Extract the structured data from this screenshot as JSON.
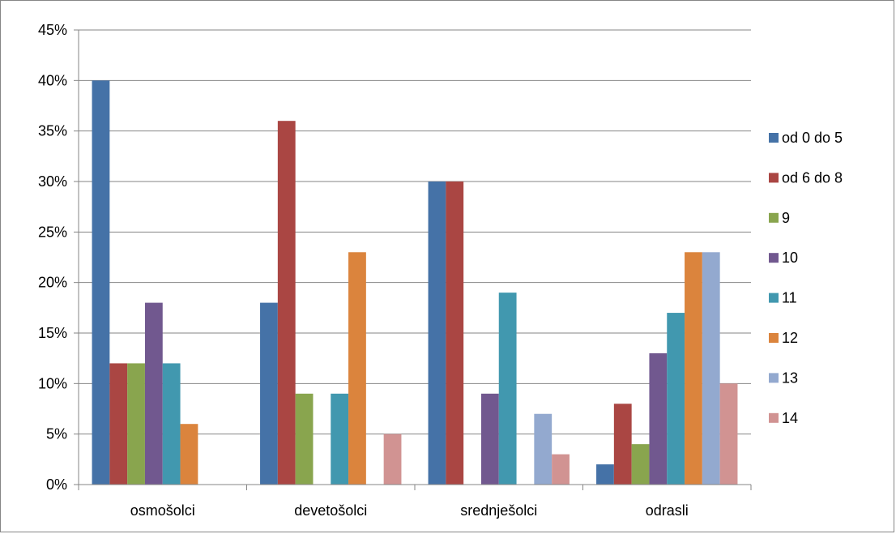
{
  "chart_data": {
    "type": "bar",
    "title": "",
    "xlabel": "",
    "ylabel": "",
    "categories": [
      "osmošolci",
      "devetošolci",
      "srednješolci",
      "odrasli"
    ],
    "ylim": [
      0,
      45
    ],
    "yticks": [
      "0%",
      "5%",
      "10%",
      "15%",
      "20%",
      "25%",
      "30%",
      "35%",
      "40%",
      "45%"
    ],
    "grid": true,
    "legend_position": "right",
    "series": [
      {
        "name": "od 0 do 5",
        "color": "#4572A7",
        "values": [
          40,
          18,
          30,
          2
        ]
      },
      {
        "name": "od 6 do 8",
        "color": "#AA4643",
        "values": [
          12,
          36,
          30,
          8
        ]
      },
      {
        "name": "9",
        "color": "#89A54E",
        "values": [
          12,
          9,
          0,
          4
        ]
      },
      {
        "name": "10",
        "color": "#71588F",
        "values": [
          18,
          0,
          9,
          13
        ]
      },
      {
        "name": "11",
        "color": "#4198AF",
        "values": [
          12,
          9,
          19,
          17
        ]
      },
      {
        "name": "12",
        "color": "#DB843D",
        "values": [
          6,
          23,
          0,
          23
        ]
      },
      {
        "name": "13",
        "color": "#93A9CF",
        "values": [
          0,
          0,
          7,
          23
        ]
      },
      {
        "name": "14",
        "color": "#D19392",
        "values": [
          0,
          5,
          3,
          10
        ]
      }
    ]
  }
}
